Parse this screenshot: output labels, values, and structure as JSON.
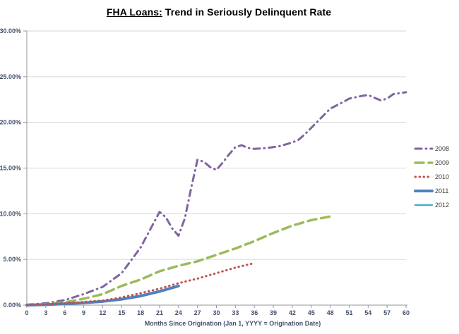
{
  "title": {
    "part1": "FHA Loans:",
    "part2": " Trend in Seriously Delinquent Rate"
  },
  "colors": {
    "gridline": "#D6D6D6",
    "axis": "#969696",
    "tick_label": "#44506B",
    "legend_label": "#3F3F3F",
    "title": "#000000"
  },
  "chart_data": {
    "type": "line",
    "title": "FHA Loans: Trend in Seriously Delinquent Rate",
    "xlabel": "Months Since Origination (Jan 1, YYYY = Origination Date)",
    "ylabel": "",
    "xlim": [
      0,
      60
    ],
    "ylim": [
      0,
      30
    ],
    "grid": "horizontal",
    "legend_position": "right-middle",
    "x_ticks": [
      0,
      3,
      6,
      9,
      12,
      15,
      18,
      21,
      24,
      27,
      30,
      33,
      36,
      39,
      42,
      45,
      48,
      51,
      54,
      57,
      60
    ],
    "y_ticks": [
      {
        "value": 0,
        "label": "0.00%"
      },
      {
        "value": 5,
        "label": "5.00%"
      },
      {
        "value": 10,
        "label": "10.00%"
      },
      {
        "value": 15,
        "label": "15.00%"
      },
      {
        "value": 20,
        "label": "20.00%"
      },
      {
        "value": 25,
        "label": "25.00%"
      },
      {
        "value": 30,
        "label": "30.00%"
      }
    ],
    "series": [
      {
        "name": "2008",
        "color": "#8064A2",
        "style": "dash-dot",
        "thickness": 3,
        "x": [
          0,
          3,
          6,
          9,
          12,
          15,
          18,
          20,
          21,
          22,
          23,
          24,
          25,
          26,
          27,
          28,
          29,
          30,
          31,
          32,
          33,
          34,
          35,
          36,
          38,
          40,
          42,
          43,
          44,
          45,
          46,
          47,
          48,
          50,
          51,
          53,
          54,
          55,
          56,
          57,
          58,
          60
        ],
        "values": [
          0.05,
          0.2,
          0.55,
          1.2,
          2.0,
          3.5,
          6.3,
          8.9,
          10.2,
          9.6,
          8.4,
          7.6,
          9.5,
          12.8,
          15.9,
          15.7,
          15.1,
          14.8,
          15.6,
          16.5,
          17.3,
          17.5,
          17.2,
          17.1,
          17.2,
          17.4,
          17.8,
          18.1,
          18.7,
          19.4,
          20.1,
          20.8,
          21.5,
          22.2,
          22.6,
          22.9,
          23.0,
          22.7,
          22.4,
          22.6,
          23.1,
          23.3
        ]
      },
      {
        "name": "2009",
        "color": "#9BBB59",
        "style": "dash",
        "thickness": 3.5,
        "x": [
          0,
          3,
          6,
          9,
          12,
          15,
          18,
          21,
          24,
          27,
          30,
          33,
          36,
          39,
          42,
          45,
          48
        ],
        "values": [
          0.0,
          0.1,
          0.3,
          0.7,
          1.2,
          2.1,
          2.8,
          3.7,
          4.3,
          4.8,
          5.5,
          6.2,
          7.0,
          7.9,
          8.7,
          9.3,
          9.7
        ]
      },
      {
        "name": "2010",
        "color": "#C0504D",
        "style": "dot",
        "thickness": 3,
        "x": [
          0,
          3,
          6,
          9,
          12,
          15,
          18,
          21,
          24,
          27,
          30,
          33,
          36
        ],
        "values": [
          0.0,
          0.1,
          0.2,
          0.35,
          0.5,
          0.85,
          1.3,
          1.8,
          2.4,
          2.9,
          3.5,
          4.1,
          4.6
        ]
      },
      {
        "name": "2011",
        "color": "#4F81BD",
        "style": "solid",
        "thickness": 4,
        "x": [
          0,
          3,
          6,
          9,
          12,
          15,
          18,
          21,
          24
        ],
        "values": [
          0.0,
          0.05,
          0.15,
          0.25,
          0.4,
          0.65,
          1.0,
          1.5,
          2.1
        ]
      },
      {
        "name": "2012",
        "color": "#4BACC6",
        "style": "solid",
        "thickness": 2.5,
        "x": [
          0,
          3,
          6,
          9,
          12
        ],
        "values": [
          0.0,
          0.05,
          0.1,
          0.2,
          0.35
        ]
      }
    ]
  }
}
